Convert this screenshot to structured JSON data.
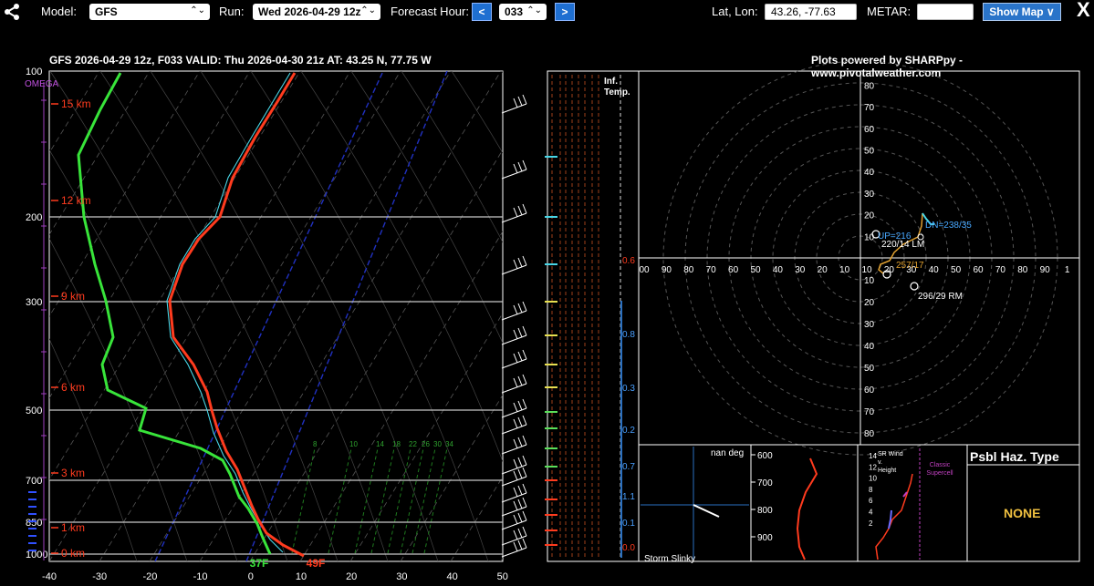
{
  "topbar": {
    "model_label": "Model:",
    "model_value": "GFS",
    "run_label": "Run:",
    "run_value": "Wed 2026-04-29 12z",
    "forecast_hour_label": "Forecast Hour:",
    "prev_label": "<",
    "forecast_hour_value": "033",
    "next_label": ">",
    "latlon_label": "Lat, Lon:",
    "latlon_value": "43.26, -77.63",
    "metar_label": "METAR:",
    "metar_value": "",
    "show_map_label": "Show Map ∨",
    "close_label": "X"
  },
  "header": {
    "title": "GFS 2026-04-29 12z, F033  VALID: Thu 2026-04-30 21z  AT: 43.25 N, 77.75 W",
    "credit": "Plots powered by SHARPpy - www.pivotalweather.com"
  },
  "skewt": {
    "pressure_labels": [
      "100",
      "200",
      "300",
      "500",
      "700",
      "850",
      "1000"
    ],
    "height_labels": [
      "15 km",
      "12 km",
      "9 km",
      "6 km",
      "3 km",
      "1 km",
      "0 km"
    ],
    "omega_label": "OMEGA",
    "temp_ticks": [
      "-40",
      "-30",
      "-20",
      "-10",
      "0",
      "10",
      "20",
      "30",
      "40",
      "50"
    ],
    "mixing_ratio_labels": [
      "8",
      "10",
      "14",
      "18",
      "22",
      "26",
      "30",
      "34"
    ],
    "surface_dewpoint": "37F",
    "surface_temp": "49F"
  },
  "theta_panel": {
    "title": "Inf. Temp.",
    "values": [
      "0.6",
      "0.8",
      "0.3",
      "0.2",
      "0.7",
      "1.1",
      "0.1",
      "0.0"
    ]
  },
  "hodograph": {
    "rings": [
      "80",
      "70",
      "60",
      "50",
      "40",
      "30",
      "20",
      "10"
    ],
    "x_labels": [
      "00",
      "90",
      "80",
      "70",
      "60",
      "50",
      "40",
      "30",
      "20",
      "10",
      "10",
      "20",
      "30",
      "40",
      "50",
      "60",
      "70",
      "80",
      "90",
      "1"
    ],
    "y_up_labels": [
      "80",
      "70",
      "60",
      "50",
      "40",
      "30",
      "20",
      "10"
    ],
    "y_down_labels": [
      "10",
      "20",
      "30",
      "40",
      "50",
      "60",
      "70",
      "80"
    ],
    "up_label": "UP=216",
    "dn_label": "DN=238/35",
    "lm_label": "220/14 LM",
    "storm_motion_label": "257/17",
    "rm_label": "296/29 RM"
  },
  "slinky": {
    "nan_label": "nan deg",
    "title": "Storm Slinky"
  },
  "theta_e": {
    "pressure_labels": [
      "600",
      "700",
      "800",
      "900"
    ]
  },
  "srwind": {
    "title": "SR Wind v. Height",
    "height_ticks": [
      "14",
      "12",
      "10",
      "8",
      "6",
      "4",
      "2"
    ],
    "supercell_label": "Classic Supercell"
  },
  "hazard": {
    "title": "Psbl Haz. Type",
    "value": "NONE"
  },
  "colors": {
    "temperature": "#ff3b1e",
    "dewpoint": "#38e43a",
    "wetbulb": "#48d6e6",
    "isobar": "#c8c8c8",
    "height_label": "#ff3b1e",
    "accent_button": "#2a74c9"
  }
}
